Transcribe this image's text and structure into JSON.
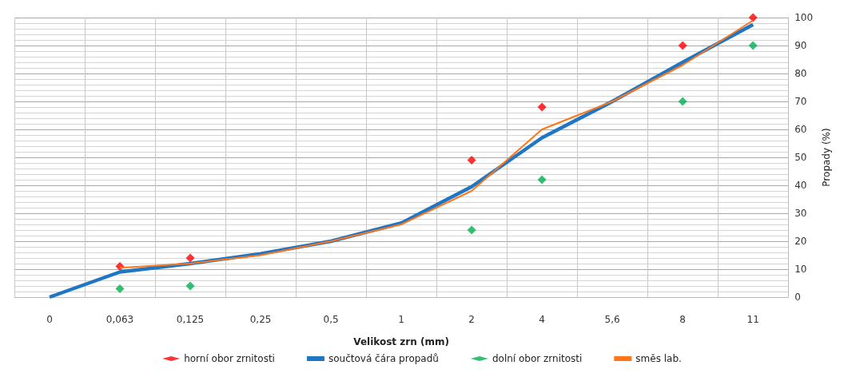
{
  "chart_data": {
    "type": "line",
    "xlabel": "Velikost zrn (mm)",
    "ylabel": "Propady (%)",
    "categories": [
      "0",
      "0,063",
      "0,125",
      "0,25",
      "0,5",
      "1",
      "2",
      "4",
      "5,6",
      "8",
      "11"
    ],
    "series": [
      {
        "name": "horní obor zrnitosti",
        "type": "scatter",
        "marker": "diamond",
        "color": "#ff0000",
        "values": [
          null,
          11,
          14,
          null,
          null,
          null,
          49,
          68,
          null,
          90,
          100
        ]
      },
      {
        "name": "součtová čára propadů",
        "marker": "none",
        "color": "#1f77c4",
        "values": [
          0,
          9,
          12,
          15.5,
          20,
          26.5,
          39.5,
          57,
          70,
          84,
          97.5
        ]
      },
      {
        "name": "dolní obor zrnitosti",
        "type": "scatter",
        "marker": "diamond",
        "color": "#00b050",
        "values": [
          null,
          3,
          4,
          null,
          null,
          null,
          24,
          42,
          null,
          70,
          90
        ]
      },
      {
        "name": "směs lab.",
        "marker": "none",
        "color": "#ff7518",
        "values": [
          null,
          10.5,
          12,
          15,
          20,
          26,
          38,
          60,
          70,
          83,
          99
        ]
      }
    ],
    "ylim": [
      0,
      100
    ],
    "yticks": [
      0,
      10,
      20,
      30,
      40,
      50,
      60,
      70,
      80,
      90,
      100
    ],
    "grid": true,
    "legend": "bottom"
  }
}
